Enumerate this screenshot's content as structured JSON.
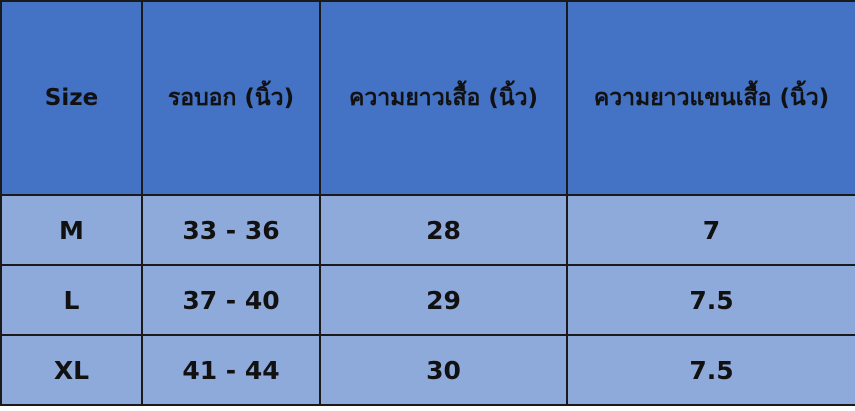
{
  "table": {
    "headers": [
      "Size",
      "รอบอก (นิ้ว)",
      "ความยาวเสื้อ (นิ้ว)",
      "ความยาวแขนเสื้อ (นิ้ว)"
    ],
    "rows": [
      [
        "M",
        "33 - 36",
        "28",
        "7"
      ],
      [
        "L",
        "37 - 40",
        "29",
        "7.5"
      ],
      [
        "XL",
        "41 - 44",
        "30",
        "7.5"
      ]
    ]
  },
  "colors": {
    "header": "#4472c4",
    "body": "#8eaadb",
    "border": "#1a1a1a"
  }
}
